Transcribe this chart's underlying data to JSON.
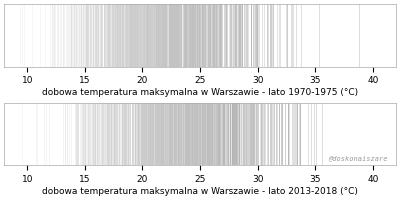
{
  "title1": "dobowa temperatura maksymalna w Warszawie - lato 1970-1975 (°C)",
  "title2": "dobowa temperatura maksymalna w Warszawie - lato 2013-2018 (°C)",
  "watermark": "@doskonaiszare",
  "xmin": 8,
  "xmax": 42,
  "xticks": [
    10,
    15,
    20,
    25,
    30,
    35,
    40
  ],
  "cmap": "gray",
  "vmin": 8,
  "vmax": 42,
  "n_samples1": 920,
  "n_samples2": 920,
  "seed1": 42,
  "seed2": 137,
  "mean1": 21.5,
  "std1": 4.5,
  "mean2": 23.0,
  "std2": 4.5,
  "title_fontsize": 6.5,
  "tick_fontsize": 6.5,
  "watermark_fontsize": 5,
  "linewidth": 0.4,
  "alpha": 0.6,
  "background": "#ffffff",
  "fig_width": 4.0,
  "fig_height": 2.0,
  "dpi": 100,
  "color_dark": 0.55,
  "color_light": 0.92
}
